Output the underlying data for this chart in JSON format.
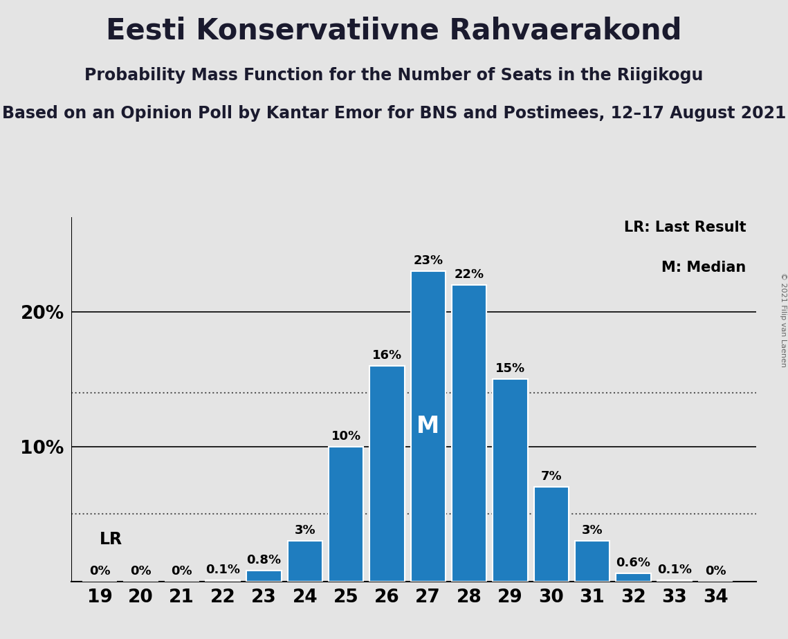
{
  "title": "Eesti Konservatiivne Rahvaerakond",
  "subtitle1": "Probability Mass Function for the Number of Seats in the Riigikogu",
  "subtitle2": "Based on an Opinion Poll by Kantar Emor for BNS and Postimees, 12–17 August 2021",
  "copyright": "© 2021 Filip van Laenen",
  "seats": [
    19,
    20,
    21,
    22,
    23,
    24,
    25,
    26,
    27,
    28,
    29,
    30,
    31,
    32,
    33,
    34
  ],
  "probabilities": [
    0.0,
    0.0,
    0.0,
    0.1,
    0.8,
    3.0,
    10.0,
    16.0,
    23.0,
    22.0,
    15.0,
    7.0,
    3.0,
    0.6,
    0.1,
    0.0
  ],
  "bar_color": "#1f7dbf",
  "background_color": "#e4e4e4",
  "median_seat": 27,
  "last_result_seat": 19,
  "legend_lr": "LR: Last Result",
  "legend_m": "M: Median",
  "lr_label": "LR",
  "m_label": "M",
  "yticks": [
    10,
    20
  ],
  "ytick_labels": [
    "10%",
    "20%"
  ],
  "dotted_line1": 5.0,
  "dotted_line2": 14.0,
  "title_fontsize": 30,
  "subtitle1_fontsize": 17,
  "subtitle2_fontsize": 17,
  "bar_label_fontsize": 13,
  "axis_tick_fontsize": 19,
  "legend_fontsize": 15,
  "lr_label_fontsize": 17,
  "m_label_fontsize": 24,
  "ylim_max": 27
}
